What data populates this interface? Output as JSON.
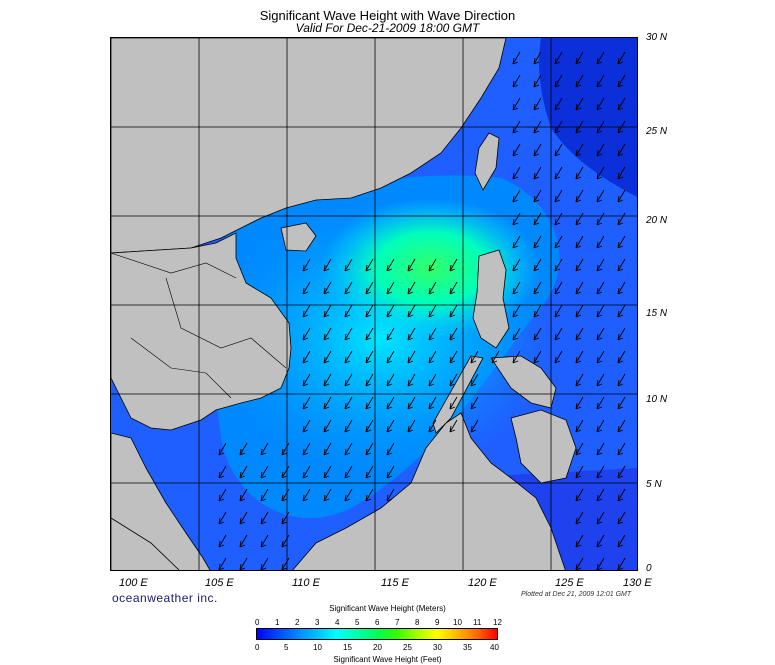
{
  "title": "Significant Wave Height with Wave Direction",
  "subtitle": "Valid For Dec-21-2009 18:00 GMT",
  "lat_labels": [
    "30 N",
    "25 N",
    "20 N",
    "15 N",
    "10 N",
    "5 N",
    "0"
  ],
  "lon_labels": [
    "100 E",
    "105 E",
    "110 E",
    "115 E",
    "120 E",
    "125 E",
    "130 E"
  ],
  "brand": "oceanweather inc.",
  "plotted": "Plotted at Dec 21, 2009 12:01 GMT",
  "colorbar": {
    "title_meters": "Significant Wave Height (Meters)",
    "title_feet": "Significant Wave Height (Feet)",
    "meter_ticks": [
      "0",
      "1",
      "2",
      "3",
      "4",
      "5",
      "6",
      "7",
      "8",
      "9",
      "10",
      "11",
      "12"
    ],
    "feet_ticks": [
      "0",
      "5",
      "10",
      "15",
      "20",
      "25",
      "30",
      "35",
      "40"
    ]
  },
  "map": {
    "lat_range": [
      0,
      30
    ],
    "lon_range": [
      100,
      130
    ],
    "grid_interval_deg": 5,
    "land_color": "#c0c0c0",
    "wave_direction": "from northeast toward southwest"
  }
}
